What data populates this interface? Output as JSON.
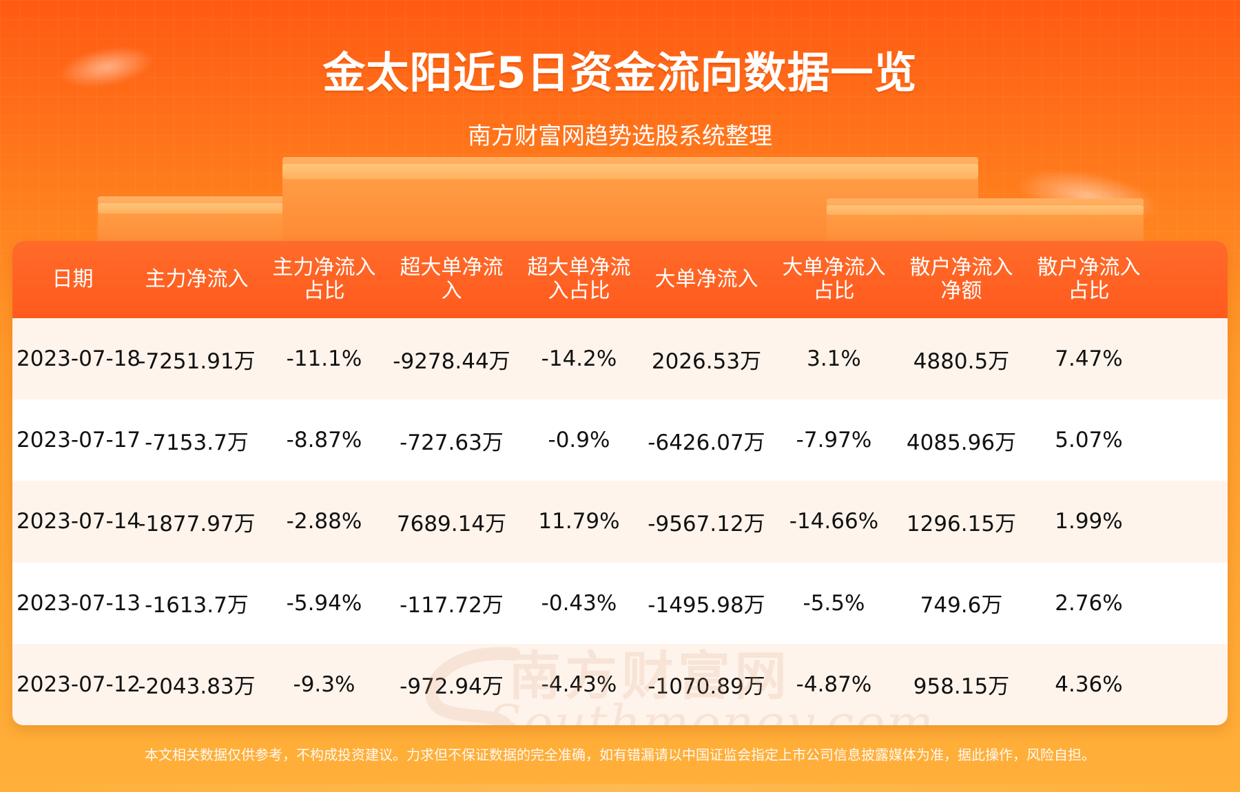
{
  "header": {
    "title": "金太阳近5日资金流向数据一览",
    "subtitle": "南方财富网趋势选股系统整理"
  },
  "table": {
    "columns": [
      "日期",
      "主力净流入",
      "主力净流入\n占比",
      "超大单净流\n入",
      "超大单净流\n入占比",
      "大单净流入",
      "大单净流入\n占比",
      "散户净流入\n净额",
      "散户净流入\n占比",
      ""
    ],
    "rows": [
      [
        "2023-07-18",
        "-7251.91万",
        "-11.1%",
        "-9278.44万",
        "-14.2%",
        "2026.53万",
        "3.1%",
        "4880.5万",
        "7.47%",
        ""
      ],
      [
        "2023-07-17",
        "-7153.7万",
        "-8.87%",
        "-727.63万",
        "-0.9%",
        "-6426.07万",
        "-7.97%",
        "4085.96万",
        "5.07%",
        ""
      ],
      [
        "2023-07-14",
        "-1877.97万",
        "-2.88%",
        "7689.14万",
        "11.79%",
        "-9567.12万",
        "-14.66%",
        "1296.15万",
        "1.99%",
        ""
      ],
      [
        "2023-07-13",
        "-1613.7万",
        "-5.94%",
        "-117.72万",
        "-0.43%",
        "-1495.98万",
        "-5.5%",
        "749.6万",
        "2.76%",
        ""
      ],
      [
        "2023-07-12",
        "-2043.83万",
        "-9.3%",
        "-972.94万",
        "-4.43%",
        "-1070.89万",
        "-4.87%",
        "958.15万",
        "4.36%",
        ""
      ]
    ]
  },
  "watermark": {
    "cn": "南方财富网",
    "en": "Southmoney.com"
  },
  "footer": {
    "disclaimer": "本文相关数据仅供参考，不构成投资建议。力求但不保证数据的完全准确，如有错漏请以中国证监会指定上市公司信息披露媒体为准，据此操作，风险自担。"
  }
}
